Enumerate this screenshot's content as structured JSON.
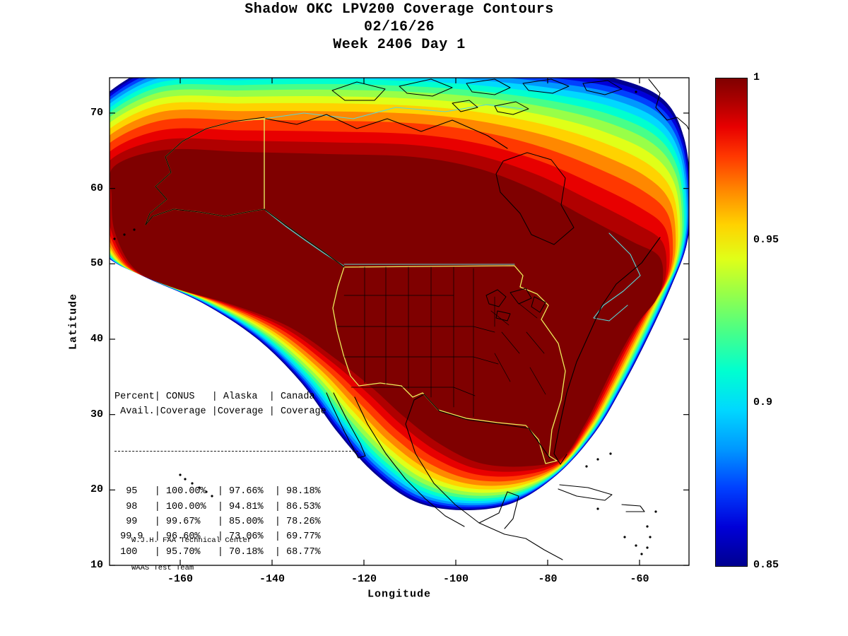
{
  "title": {
    "line1": "Shadow OKC LPV200 Coverage Contours",
    "line2": "02/16/26",
    "line3": "Week 2406 Day 1"
  },
  "axes": {
    "x_label": "Longitude",
    "y_label": "Latitude",
    "x_ticks": [
      -160,
      -140,
      -120,
      -100,
      -80,
      -60
    ],
    "y_ticks": [
      70,
      60,
      50,
      40,
      30,
      20,
      10
    ]
  },
  "colorbar": {
    "labels": [
      "1",
      "0.95",
      "0.9",
      "0.85"
    ],
    "values": [
      1,
      0.95,
      0.9,
      0.85
    ]
  },
  "coverage_table": {
    "header_lines": [
      "Percent| CONUS   | Alaska  | Canada",
      " Avail.|Coverage |Coverage | Coverage"
    ],
    "rows": [
      "  95   | 100.00%  | 97.66%  | 98.18%",
      "  98   | 100.00%  | 94.81%  | 86.53%",
      "  99   | 99.67%   | 85.00%  | 78.26%",
      " 99.9  | 96.60%   | 73.06%  | 69.77%",
      " 100   | 95.70%   | 70.18%  | 68.77%"
    ]
  },
  "credits": {
    "line1": "W.J.H. FAA Technical Center",
    "line2": "WAAS Test Team"
  },
  "chart_data": {
    "type": "heatmap",
    "subtype": "filled_contour_coverage_map",
    "title": "Shadow OKC LPV200 Coverage Contours",
    "date": "02/16/26",
    "week_day": "Week 2406 Day 1",
    "xlabel": "Longitude",
    "ylabel": "Latitude",
    "xlim": [
      -175,
      -49
    ],
    "ylim": [
      10,
      75
    ],
    "x_ticks": [
      -160,
      -140,
      -120,
      -100,
      -80,
      -60
    ],
    "y_ticks": [
      10,
      20,
      30,
      40,
      50,
      60,
      70
    ],
    "grid": false,
    "colorbar": {
      "min": 0.85,
      "max": 1,
      "ticks": [
        1,
        0.95,
        0.9,
        0.85
      ]
    },
    "band_colors": [
      "#000090",
      "#0000d8",
      "#0040ff",
      "#0098ff",
      "#00d8ff",
      "#00ffd0",
      "#48ff88",
      "#98ff48",
      "#e0ff18",
      "#ffd200",
      "#ff8800",
      "#ff3800",
      "#e80000",
      "#b00000",
      "#7f0000"
    ],
    "map_line_colors": {
      "coastline": "#000000",
      "service_boundary": "#ededs",
      "canada_boundary": "#58d8d8"
    },
    "availability_table": {
      "columns": [
        "Percent Avail.",
        "CONUS Coverage",
        "Alaska Coverage",
        "Canada Coverage"
      ],
      "rows": [
        [
          "95",
          "100.00%",
          "97.66%",
          "98.18%"
        ],
        [
          "98",
          "100.00%",
          "94.81%",
          "86.53%"
        ],
        [
          "99",
          "99.67%",
          "85.00%",
          "78.26%"
        ],
        [
          "99.9",
          "96.60%",
          "73.06%",
          "69.77%"
        ],
        [
          "100",
          "95.70%",
          "70.18%",
          "68.77%"
        ]
      ]
    },
    "annotations": [
      "W.J.H. FAA Technical Center",
      "WAAS Test Team"
    ]
  }
}
